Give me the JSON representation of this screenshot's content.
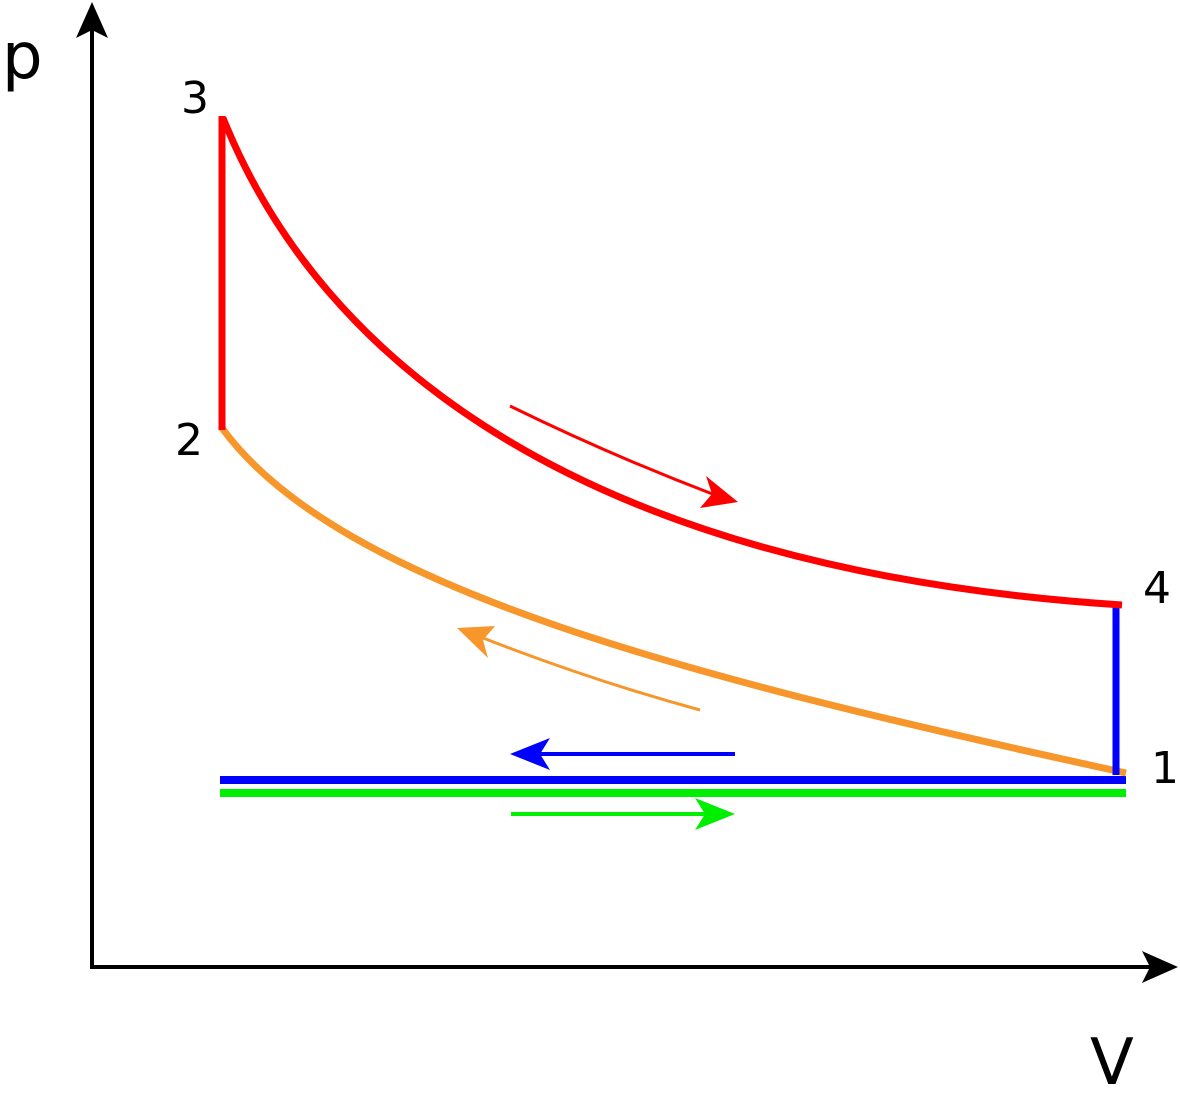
{
  "axes": {
    "y_label": "p",
    "x_label": "V"
  },
  "points": [
    {
      "label": "1"
    },
    {
      "label": "2"
    },
    {
      "label": "3"
    },
    {
      "label": "4"
    }
  ]
}
